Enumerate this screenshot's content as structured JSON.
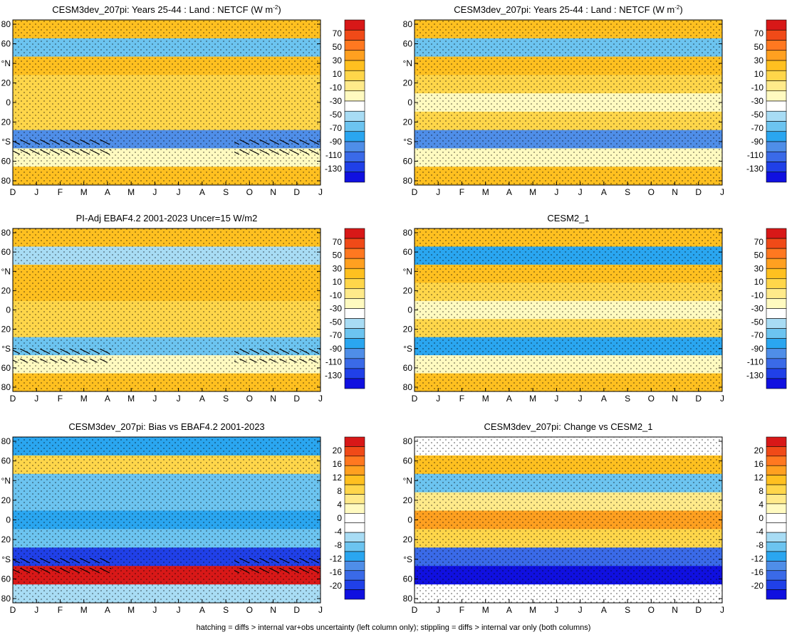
{
  "figure": {
    "footnote": "hatching = diffs > internal var+obs uncertainty (left column only); stippling = diffs > internal var only (both columns)",
    "x_ticks": [
      "D",
      "J",
      "F",
      "M",
      "A",
      "M",
      "J",
      "J",
      "A",
      "S",
      "O",
      "N",
      "D",
      "J"
    ],
    "y_ticks": [
      "80",
      "60",
      "°N",
      "20",
      "0",
      "20",
      "°S",
      "60",
      "80"
    ],
    "colors": {
      "abs_scale": [
        "#1010e0",
        "#2040e8",
        "#3a6ae8",
        "#4f8ee8",
        "#2aa6f0",
        "#6cc4f0",
        "#a8dcf4",
        "#ffffff",
        "#fffac0",
        "#ffea8a",
        "#ffd64a",
        "#ffc020",
        "#ffa020",
        "#ff7820",
        "#f04a18",
        "#d81818"
      ],
      "bias_scale": [
        "#1010e0",
        "#2040e8",
        "#3a6ae8",
        "#4f8ee8",
        "#2aa6f0",
        "#6cc4f0",
        "#a8dcf4",
        "#ffffff",
        "#ffffff",
        "#fffac0",
        "#ffea8a",
        "#ffd64a",
        "#ffc020",
        "#ffa020",
        "#ff7820",
        "#f04a18",
        "#d81818"
      ]
    }
  },
  "chart_data": [
    {
      "type": "heatmap",
      "id": "p1",
      "title": "CESM3dev_207pi: Years 25-44 : Land : NETCF (W m",
      "title_sup": "-2",
      "title_tail": ")",
      "colorbar_labels": [
        "70",
        "50",
        "30",
        "10",
        "-10",
        "-30",
        "-50",
        "-70",
        "-90",
        "-110",
        "-130"
      ],
      "hatched": true,
      "latitude_bands": [
        {
          "lat": 80,
          "value": 12
        },
        {
          "lat": 60,
          "value": -60
        },
        {
          "lat": 40,
          "value": 8
        },
        {
          "lat": 20,
          "value": 6
        },
        {
          "lat": 0,
          "value": -5
        },
        {
          "lat": -20,
          "value": 4
        },
        {
          "lat": -40,
          "value": -85
        },
        {
          "lat": -60,
          "value": -20
        },
        {
          "lat": -80,
          "value": 14
        }
      ]
    },
    {
      "type": "heatmap",
      "id": "p2",
      "title": "CESM3dev_207pi: Years 25-44 : Land : NETCF (W m",
      "title_sup": "-2",
      "title_tail": ")",
      "colorbar_labels": [
        "70",
        "50",
        "30",
        "10",
        "-10",
        "-30",
        "-50",
        "-70",
        "-90",
        "-110",
        "-130"
      ],
      "hatched": false,
      "latitude_bands": [
        {
          "lat": 80,
          "value": 12
        },
        {
          "lat": 60,
          "value": -65
        },
        {
          "lat": 40,
          "value": 8
        },
        {
          "lat": 20,
          "value": 6
        },
        {
          "lat": 0,
          "value": -25
        },
        {
          "lat": -20,
          "value": 4
        },
        {
          "lat": -40,
          "value": -90
        },
        {
          "lat": -60,
          "value": -20
        },
        {
          "lat": -80,
          "value": 14
        }
      ]
    },
    {
      "type": "heatmap",
      "id": "p3",
      "title": "PI-Adj EBAF4.2 2001-2023 Uncer=15 W/m2",
      "title_sup": "",
      "title_tail": "",
      "colorbar_labels": [
        "70",
        "50",
        "30",
        "10",
        "-10",
        "-30",
        "-50",
        "-70",
        "-90",
        "-110",
        "-130"
      ],
      "hatched": true,
      "latitude_bands": [
        {
          "lat": 80,
          "value": 12
        },
        {
          "lat": 60,
          "value": -50
        },
        {
          "lat": 40,
          "value": 8
        },
        {
          "lat": 20,
          "value": 12
        },
        {
          "lat": 0,
          "value": 6
        },
        {
          "lat": -20,
          "value": 6
        },
        {
          "lat": -40,
          "value": -60
        },
        {
          "lat": -60,
          "value": -30
        },
        {
          "lat": -80,
          "value": 14
        }
      ]
    },
    {
      "type": "heatmap",
      "id": "p4",
      "title": "CESM2_1",
      "title_sup": "",
      "title_tail": "",
      "colorbar_labels": [
        "70",
        "50",
        "30",
        "10",
        "-10",
        "-30",
        "-50",
        "-70",
        "-90",
        "-110",
        "-130"
      ],
      "hatched": false,
      "latitude_bands": [
        {
          "lat": 80,
          "value": 12
        },
        {
          "lat": 60,
          "value": -70
        },
        {
          "lat": 40,
          "value": 8
        },
        {
          "lat": 20,
          "value": 6
        },
        {
          "lat": 0,
          "value": -30
        },
        {
          "lat": -20,
          "value": 4
        },
        {
          "lat": -40,
          "value": -80
        },
        {
          "lat": -60,
          "value": -20
        },
        {
          "lat": -80,
          "value": 14
        }
      ]
    },
    {
      "type": "heatmap",
      "id": "p5",
      "title": "CESM3dev_207pi: Bias vs EBAF4.2 2001-2023",
      "title_sup": "",
      "title_tail": "",
      "colorbar_labels": [
        "20",
        "16",
        "12",
        "8",
        "4",
        "0",
        "-4",
        "-8",
        "-12",
        "-16",
        "-20"
      ],
      "hatched": true,
      "latitude_bands": [
        {
          "lat": 80,
          "value": -10
        },
        {
          "lat": 60,
          "value": 6
        },
        {
          "lat": 40,
          "value": -6
        },
        {
          "lat": 20,
          "value": -8
        },
        {
          "lat": 0,
          "value": -10
        },
        {
          "lat": -20,
          "value": -6
        },
        {
          "lat": -40,
          "value": -16
        },
        {
          "lat": -60,
          "value": 18
        },
        {
          "lat": -80,
          "value": -4
        }
      ]
    },
    {
      "type": "heatmap",
      "id": "p6",
      "title": "CESM3dev_207pi: Change vs CESM2_1",
      "title_sup": "",
      "title_tail": "",
      "colorbar_labels": [
        "20",
        "16",
        "12",
        "8",
        "4",
        "0",
        "-4",
        "-8",
        "-12",
        "-16",
        "-20"
      ],
      "hatched": false,
      "latitude_bands": [
        {
          "lat": 80,
          "value": 0
        },
        {
          "lat": 60,
          "value": 10
        },
        {
          "lat": 40,
          "value": -8
        },
        {
          "lat": 20,
          "value": 4
        },
        {
          "lat": 0,
          "value": 12
        },
        {
          "lat": -20,
          "value": 6
        },
        {
          "lat": -40,
          "value": -14
        },
        {
          "lat": -60,
          "value": -18
        },
        {
          "lat": -80,
          "value": 0
        }
      ]
    }
  ]
}
